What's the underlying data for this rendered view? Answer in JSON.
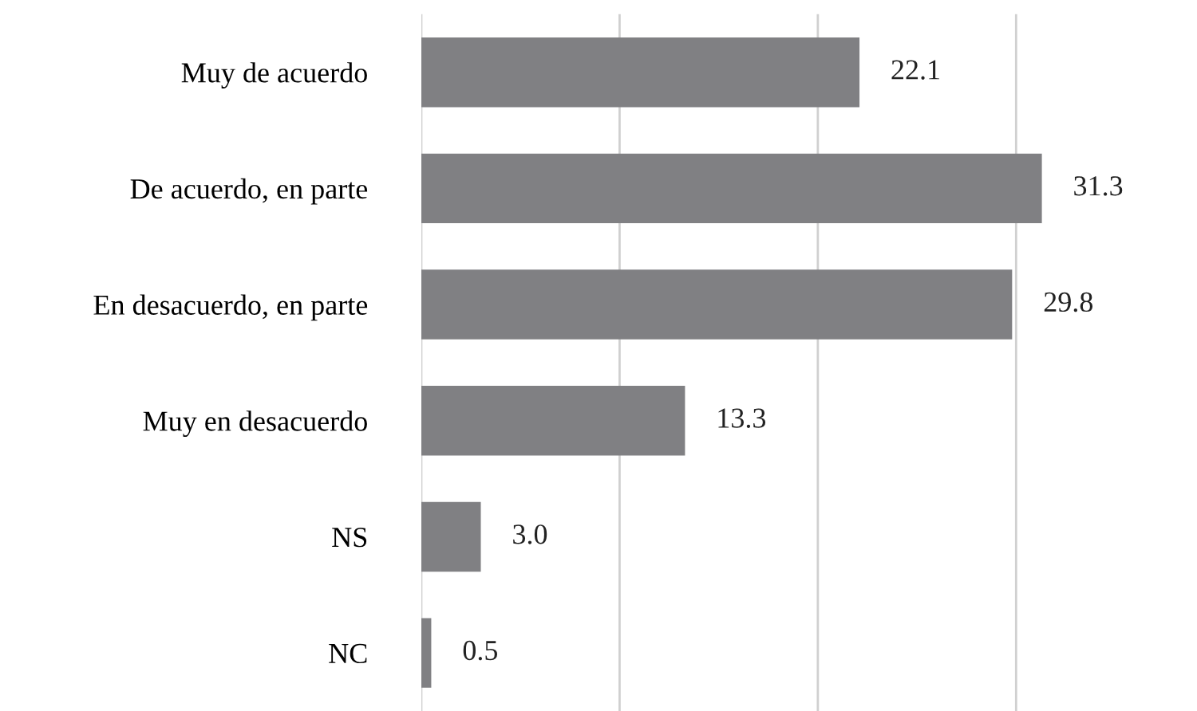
{
  "chart_data": {
    "type": "bar",
    "orientation": "horizontal",
    "categories": [
      "Muy de acuerdo",
      "De acuerdo, en parte",
      "En desacuerdo, en parte",
      "Muy en desacuerdo",
      "NS",
      "NC"
    ],
    "values": [
      22.1,
      31.3,
      29.8,
      13.3,
      3.0,
      0.5
    ],
    "value_labels": [
      "22.1",
      "31.3",
      "29.8",
      "13.3",
      "3.0",
      "0.5"
    ],
    "color": "#808083",
    "xticks": [
      {
        "value": 0,
        "label": null
      },
      {
        "value": 10,
        "label": null
      },
      {
        "value": 20,
        "label": null
      },
      {
        "value": 30,
        "label": null
      }
    ],
    "grid": "x",
    "tick_labels": "y"
  }
}
